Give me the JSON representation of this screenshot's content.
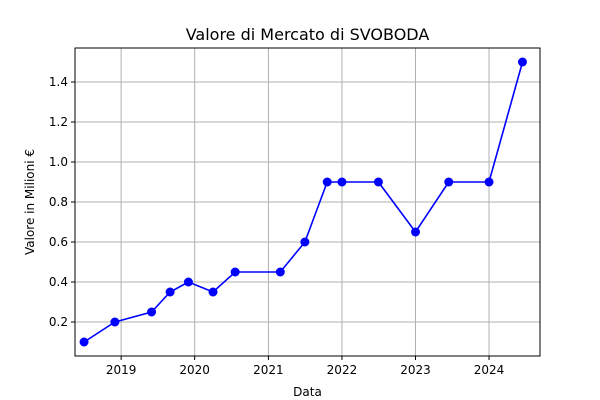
{
  "chart_data": {
    "type": "line",
    "title": "Valore di Mercato di SVOBODA",
    "xlabel": "Data",
    "ylabel": "Valore in Milioni €",
    "xlim": [
      "2018-05-17",
      "2024-09-10"
    ],
    "ylim": [
      0.03,
      1.57
    ],
    "grid": true,
    "color": "#0000ff",
    "x_ticks": [
      {
        "date": "2019-01-01",
        "label": "2019"
      },
      {
        "date": "2020-01-01",
        "label": "2020"
      },
      {
        "date": "2021-01-01",
        "label": "2021"
      },
      {
        "date": "2022-01-01",
        "label": "2022"
      },
      {
        "date": "2023-01-01",
        "label": "2023"
      },
      {
        "date": "2024-01-01",
        "label": "2024"
      }
    ],
    "y_ticks": [
      {
        "value": 0.2,
        "label": "0.2"
      },
      {
        "value": 0.4,
        "label": "0.4"
      },
      {
        "value": 0.6,
        "label": "0.6"
      },
      {
        "value": 0.8,
        "label": "0.8"
      },
      {
        "value": 1.0,
        "label": "1.0"
      },
      {
        "value": 1.2,
        "label": "1.2"
      },
      {
        "value": 1.4,
        "label": "1.4"
      }
    ],
    "series": [
      {
        "points": [
          {
            "x": "2018-07-01",
            "y": 0.1
          },
          {
            "x": "2018-12-01",
            "y": 0.2
          },
          {
            "x": "2019-06-01",
            "y": 0.25
          },
          {
            "x": "2019-09-01",
            "y": 0.35
          },
          {
            "x": "2019-12-01",
            "y": 0.4
          },
          {
            "x": "2020-04-01",
            "y": 0.35
          },
          {
            "x": "2020-07-20",
            "y": 0.45
          },
          {
            "x": "2021-03-01",
            "y": 0.45
          },
          {
            "x": "2021-07-01",
            "y": 0.6
          },
          {
            "x": "2021-10-20",
            "y": 0.9
          },
          {
            "x": "2022-01-01",
            "y": 0.9
          },
          {
            "x": "2022-07-01",
            "y": 0.9
          },
          {
            "x": "2023-01-01",
            "y": 0.65
          },
          {
            "x": "2023-06-15",
            "y": 0.9
          },
          {
            "x": "2024-01-01",
            "y": 0.9
          },
          {
            "x": "2024-06-15",
            "y": 1.5
          }
        ]
      }
    ]
  }
}
